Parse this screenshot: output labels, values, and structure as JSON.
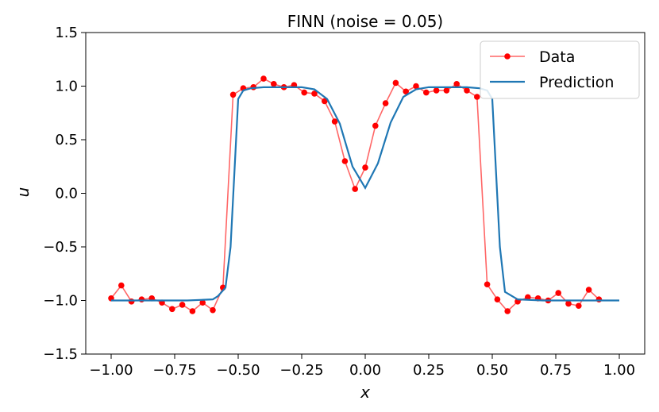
{
  "chart_data": {
    "type": "line",
    "title": "FINN (noise = 0.05)",
    "xlabel": "x",
    "ylabel": "u",
    "xlim": [
      -1.1,
      1.1
    ],
    "ylim": [
      -1.5,
      1.5
    ],
    "xticks": [
      -1.0,
      -0.75,
      -0.5,
      -0.25,
      0.0,
      0.25,
      0.5,
      0.75,
      1.0
    ],
    "xtick_labels": [
      "−1.00",
      "−0.75",
      "−0.50",
      "−0.25",
      "0.00",
      "0.25",
      "0.50",
      "0.75",
      "1.00"
    ],
    "yticks": [
      -1.5,
      -1.0,
      -0.5,
      0.0,
      0.5,
      1.0,
      1.5
    ],
    "ytick_labels": [
      "−1.5",
      "−1.0",
      "−0.5",
      "0.0",
      "0.5",
      "1.0",
      "1.5"
    ],
    "grid": false,
    "legend": {
      "position": "top-right"
    },
    "series": [
      {
        "name": "Data",
        "color": "#ff0000",
        "marker": "circle",
        "x": [
          -1.0,
          -0.96,
          -0.92,
          -0.88,
          -0.84,
          -0.8,
          -0.76,
          -0.72,
          -0.68,
          -0.64,
          -0.6,
          -0.56,
          -0.52,
          -0.48,
          -0.44,
          -0.4,
          -0.36,
          -0.32,
          -0.28,
          -0.24,
          -0.2,
          -0.16,
          -0.12,
          -0.08,
          -0.04,
          0.0,
          0.04,
          0.08,
          0.12,
          0.16,
          0.2,
          0.24,
          0.28,
          0.32,
          0.36,
          0.4,
          0.44,
          0.48,
          0.52,
          0.56,
          0.6,
          0.64,
          0.68,
          0.72,
          0.76,
          0.8,
          0.84,
          0.88,
          0.92,
          0.96,
          1.0
        ],
        "y": [
          -0.98,
          -0.86,
          -1.01,
          -0.99,
          -0.98,
          -1.02,
          -1.08,
          -1.04,
          -1.1,
          -1.02,
          -1.09,
          -0.88,
          0.92,
          0.98,
          0.99,
          1.07,
          1.02,
          0.99,
          1.01,
          0.94,
          0.93,
          0.86,
          0.67,
          0.3,
          0.04,
          0.24,
          0.63,
          0.84,
          1.03,
          0.95,
          1.0,
          0.94,
          0.96,
          0.96,
          1.02,
          0.96,
          0.9,
          -0.85,
          -0.99,
          -1.1,
          -1.01,
          -0.97,
          -0.98,
          -1.0,
          -0.93,
          -1.03,
          -1.05,
          -0.9,
          -0.99,
          null,
          null
        ]
      },
      {
        "name": "Prediction",
        "color": "#1f77b4",
        "x": [
          -1.0,
          -0.9,
          -0.8,
          -0.7,
          -0.6,
          -0.58,
          -0.55,
          -0.53,
          -0.5,
          -0.48,
          -0.45,
          -0.4,
          -0.35,
          -0.3,
          -0.25,
          -0.2,
          -0.15,
          -0.1,
          -0.05,
          0.0,
          0.05,
          0.1,
          0.15,
          0.2,
          0.25,
          0.3,
          0.35,
          0.4,
          0.45,
          0.48,
          0.5,
          0.53,
          0.55,
          0.6,
          0.7,
          0.8,
          0.9,
          1.0
        ],
        "y": [
          -1.0,
          -1.0,
          -1.0,
          -1.0,
          -0.99,
          -0.96,
          -0.88,
          -0.5,
          0.88,
          0.96,
          0.98,
          0.99,
          0.99,
          0.99,
          0.99,
          0.97,
          0.88,
          0.65,
          0.25,
          0.05,
          0.28,
          0.66,
          0.9,
          0.97,
          0.99,
          0.99,
          0.99,
          0.99,
          0.98,
          0.96,
          0.88,
          -0.5,
          -0.92,
          -0.99,
          -1.0,
          -1.0,
          -1.0,
          -1.0
        ]
      }
    ]
  }
}
